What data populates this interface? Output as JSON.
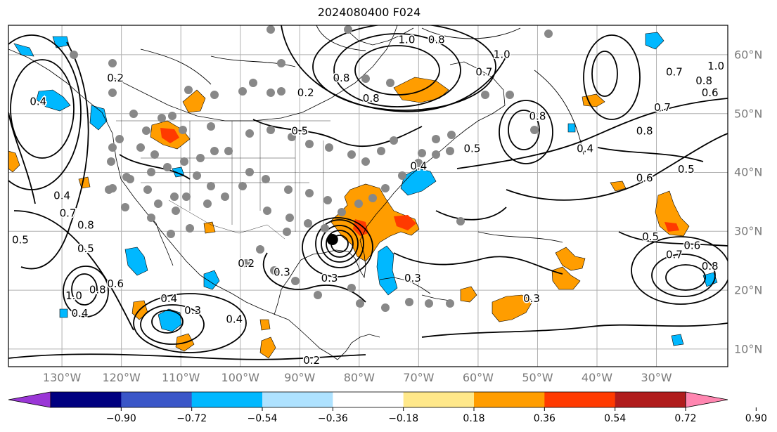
{
  "title": "2024080400 F024",
  "map": {
    "lon_range": [
      -139,
      -18
    ],
    "lat_range": [
      7,
      65
    ],
    "lon_ticks": [
      "130°W",
      "120°W",
      "110°W",
      "100°W",
      "90°W",
      "80°W",
      "70°W",
      "60°W",
      "50°W",
      "40°W",
      "30°W"
    ],
    "lat_ticks": [
      "60°N",
      "50°N",
      "40°N",
      "30°N",
      "20°N",
      "10°N"
    ],
    "gridlines": true,
    "contour_labels": [
      {
        "text": "1.0",
        "lon": -72,
        "lat": 62.5
      },
      {
        "text": "0.8",
        "lon": -67,
        "lat": 62.5
      },
      {
        "text": "1.0",
        "lon": -56,
        "lat": 60
      },
      {
        "text": "0.7",
        "lon": -27,
        "lat": 57
      },
      {
        "text": "1.0",
        "lon": -20,
        "lat": 58
      },
      {
        "text": "0.8",
        "lon": -22,
        "lat": 55.5
      },
      {
        "text": "0.6",
        "lon": -21,
        "lat": 53.5
      },
      {
        "text": "0.2",
        "lon": -121,
        "lat": 56
      },
      {
        "text": "0.2",
        "lon": -89,
        "lat": 53.5
      },
      {
        "text": "0.8",
        "lon": -83,
        "lat": 56
      },
      {
        "text": "0.8",
        "lon": -78,
        "lat": 52.5
      },
      {
        "text": "0.7",
        "lon": -59,
        "lat": 57
      },
      {
        "text": "0.8",
        "lon": -50,
        "lat": 49.5
      },
      {
        "text": "0.8",
        "lon": -32,
        "lat": 47
      },
      {
        "text": "0.7",
        "lon": -29,
        "lat": 51
      },
      {
        "text": "0.4",
        "lon": -42,
        "lat": 44
      },
      {
        "text": "0.5",
        "lon": -61,
        "lat": 44
      },
      {
        "text": "0.4",
        "lon": -70,
        "lat": 41
      },
      {
        "text": "0.5",
        "lon": -90,
        "lat": 47
      },
      {
        "text": "0.4",
        "lon": -134,
        "lat": 52
      },
      {
        "text": "0.4",
        "lon": -130,
        "lat": 36
      },
      {
        "text": "0.7",
        "lon": -129,
        "lat": 33
      },
      {
        "text": "0.8",
        "lon": -126,
        "lat": 31
      },
      {
        "text": "0.5",
        "lon": -137,
        "lat": 28.5
      },
      {
        "text": "0.5",
        "lon": -126,
        "lat": 27
      },
      {
        "text": "0.6",
        "lon": -32,
        "lat": 39
      },
      {
        "text": "0.5",
        "lon": -25,
        "lat": 40.5
      },
      {
        "text": "0.5",
        "lon": -31,
        "lat": 29
      },
      {
        "text": "0.6",
        "lon": -24,
        "lat": 27.5
      },
      {
        "text": "0.7",
        "lon": -27,
        "lat": 26
      },
      {
        "text": "0.8",
        "lon": -21,
        "lat": 24
      },
      {
        "text": "0.2",
        "lon": -99,
        "lat": 24.5
      },
      {
        "text": "0.3",
        "lon": -93,
        "lat": 23
      },
      {
        "text": "0.3",
        "lon": -85,
        "lat": 22
      },
      {
        "text": "0.3",
        "lon": -71,
        "lat": 22
      },
      {
        "text": "0.3",
        "lon": -51,
        "lat": 18.5
      },
      {
        "text": "0.3",
        "lon": -108,
        "lat": 16.5
      },
      {
        "text": "0.4",
        "lon": -112,
        "lat": 18.5
      },
      {
        "text": "0.4",
        "lon": -101,
        "lat": 15
      },
      {
        "text": "1.0",
        "lon": -128,
        "lat": 19
      },
      {
        "text": "0.8",
        "lon": -124,
        "lat": 20
      },
      {
        "text": "0.6",
        "lon": -121,
        "lat": 21
      },
      {
        "text": "0.4",
        "lon": -127,
        "lat": 16
      },
      {
        "text": "0.2",
        "lon": -88,
        "lat": 8
      }
    ],
    "hurricane": {
      "lon": -84.5,
      "lat": 28.6
    }
  },
  "colorbar": {
    "ticks": [
      "−0.90",
      "−0.72",
      "−0.54",
      "−0.36",
      "−0.18",
      "0.18",
      "0.36",
      "0.54",
      "0.72",
      "0.90"
    ],
    "colors": [
      "#9a36d6",
      "#000080",
      "#3a56c8",
      "#00b8ff",
      "#aee2ff",
      "#ffffff",
      "#ffe88a",
      "#ff9d00",
      "#ff3a00",
      "#b01c1c",
      "#ff86b0"
    ]
  }
}
